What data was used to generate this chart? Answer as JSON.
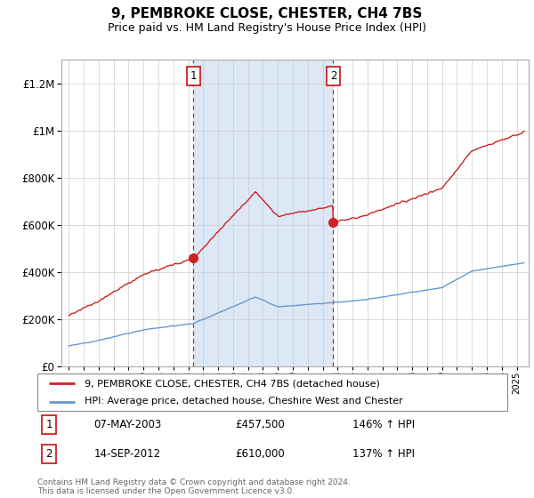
{
  "title": "9, PEMBROKE CLOSE, CHESTER, CH4 7BS",
  "subtitle": "Price paid vs. HM Land Registry's House Price Index (HPI)",
  "sale1_price": 457500,
  "sale2_price": 610000,
  "legend_line1": "9, PEMBROKE CLOSE, CHESTER, CH4 7BS (detached house)",
  "legend_line2": "HPI: Average price, detached house, Cheshire West and Chester",
  "footer": "Contains HM Land Registry data © Crown copyright and database right 2024.\nThis data is licensed under the Open Government Licence v3.0.",
  "hpi_color": "#6699cc",
  "price_color": "#cc2222",
  "shaded_color": "#dce8f5",
  "label_box_color": "#cc2222",
  "ylim_max": 1300000,
  "ylim_min": 0,
  "t1": 2003.35,
  "t2": 2012.71,
  "table_row1": [
    "1",
    "07-MAY-2003",
    "£457,500",
    "146% ↑ HPI"
  ],
  "table_row2": [
    "2",
    "14-SEP-2012",
    "£610,000",
    "137% ↑ HPI"
  ]
}
